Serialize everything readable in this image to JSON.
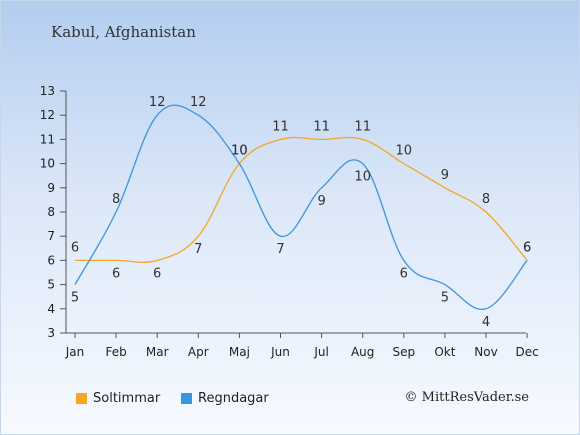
{
  "header": {
    "title": "Kabul, Afghanistan"
  },
  "legend": {
    "sun_label": "Soltimmar",
    "rain_label": "Regndagar"
  },
  "credit": "© MittResVader.se",
  "colors": {
    "sun": "#f5a623",
    "rain": "#3a95e0"
  },
  "chart_data": {
    "type": "line",
    "title": "Kabul, Afghanistan",
    "categories": [
      "Jan",
      "Feb",
      "Mar",
      "Apr",
      "Maj",
      "Jun",
      "Jul",
      "Aug",
      "Sep",
      "Okt",
      "Nov",
      "Dec"
    ],
    "ylim": [
      3,
      13
    ],
    "yticks": [
      3,
      4,
      5,
      6,
      7,
      8,
      9,
      10,
      11,
      12,
      13
    ],
    "grid": false,
    "legend_position": "bottom-left",
    "series": [
      {
        "name": "Soltimmar",
        "color": "#f5a623",
        "values": [
          6,
          6,
          6,
          7,
          10,
          11,
          11,
          11,
          10,
          9,
          8,
          6
        ]
      },
      {
        "name": "Regndagar",
        "color": "#3a95e0",
        "values": [
          5,
          8,
          12,
          12,
          10,
          7,
          9,
          10,
          6,
          5,
          4,
          6
        ]
      }
    ]
  }
}
